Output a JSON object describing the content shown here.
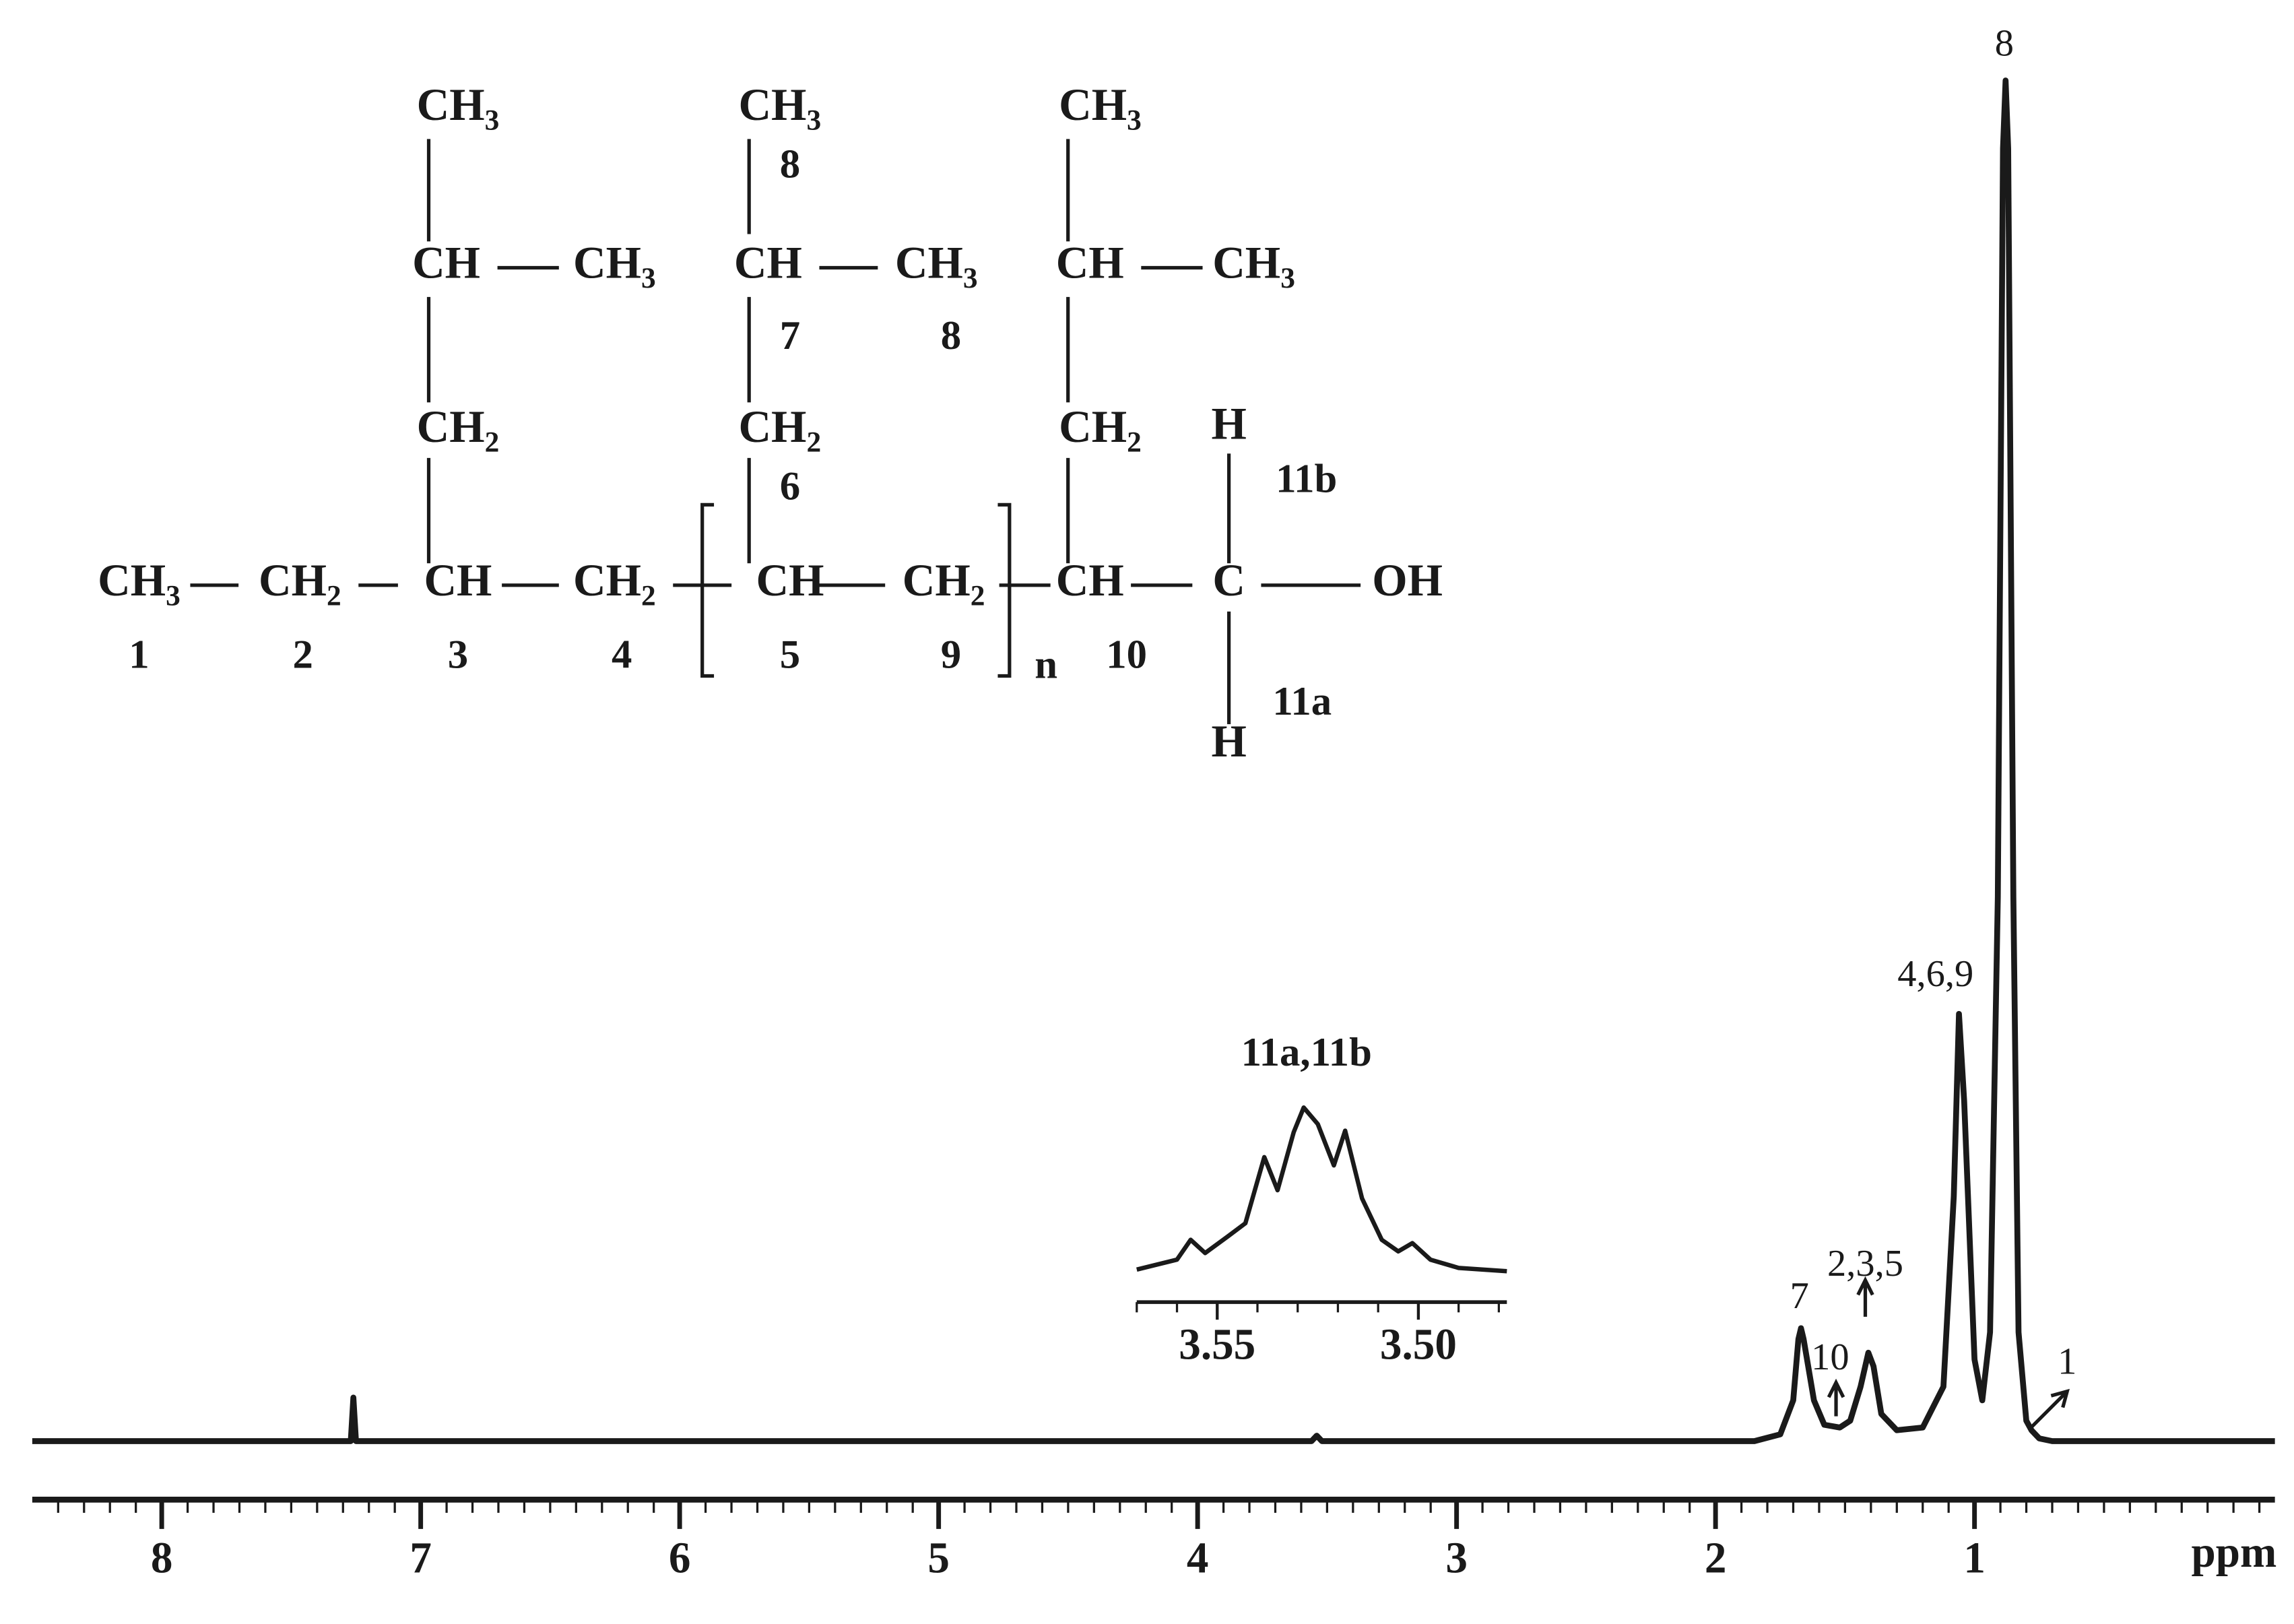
{
  "chart_data": [
    {
      "type": "line",
      "x_label": "ppm",
      "x": [
        8.5,
        7.3,
        7.27,
        7.26,
        7.25,
        3.56,
        3.54,
        3.52,
        1.85,
        1.75,
        1.7,
        1.68,
        1.67,
        1.66,
        1.62,
        1.58,
        1.52,
        1.48,
        1.44,
        1.41,
        1.39,
        1.36,
        1.3,
        1.2,
        1.12,
        1.08,
        1.06,
        1.04,
        1.0,
        0.97,
        0.94,
        0.91,
        0.89,
        0.88,
        0.87,
        0.85,
        0.83,
        0.8,
        0.78,
        0.75,
        0.7,
        -0.16
      ],
      "values": [
        0,
        0,
        0,
        3.2,
        0,
        0,
        0.4,
        0,
        0,
        0.5,
        3,
        7.5,
        8.3,
        7.5,
        3,
        1.2,
        1.0,
        1.5,
        4,
        6.5,
        5.5,
        2,
        0.8,
        1,
        4,
        18,
        31.4,
        25,
        6,
        3,
        8,
        40,
        95,
        100,
        95,
        40,
        8,
        1.5,
        0.8,
        0.2,
        0,
        0
      ],
      "color": "#1a1a1a",
      "xlim": [
        8.5,
        -0.16
      ],
      "xticks": [
        8,
        7,
        6,
        5,
        4,
        3,
        2,
        1
      ],
      "ylim": [
        0,
        100
      ],
      "annotations": [
        "8",
        "4,6,9",
        "7",
        "10",
        "2,3,5",
        "1"
      ]
    },
    {
      "type": "line",
      "title": "11a,11b",
      "x": [
        3.57,
        3.56,
        3.5566,
        3.553,
        3.5474,
        3.543,
        3.5383,
        3.535,
        3.531,
        3.5285,
        3.525,
        3.521,
        3.5182,
        3.514,
        3.5091,
        3.505,
        3.5015,
        3.497,
        3.49,
        3.478
      ],
      "values": [
        2,
        8,
        20,
        12,
        22,
        30,
        70,
        50,
        85,
        100,
        90,
        65,
        86,
        45,
        20,
        13,
        18,
        8,
        3,
        1
      ],
      "color": "#1a1a1a",
      "xlim": [
        3.57,
        3.478
      ],
      "xticks": [
        3.55,
        {
          "value": 3.5,
          "label": "3.50"
        }
      ],
      "ylim": [
        0,
        100
      ]
    }
  ],
  "structure": {
    "groups": [
      {
        "text": "CH",
        "sub": "3"
      },
      {
        "text": "CH",
        "sub": "2"
      },
      {
        "text": "CH"
      },
      {
        "text": "CH",
        "sub": "2"
      },
      {
        "text": "CH"
      },
      {
        "text": "CH",
        "sub": "2"
      },
      {
        "text": "CH"
      },
      {
        "text": "C"
      },
      {
        "text": "OH"
      },
      {
        "text": "CH",
        "sub": "2"
      },
      {
        "text": "CH"
      },
      {
        "text": "CH",
        "sub": "3"
      },
      {
        "text": "CH",
        "sub": "3"
      },
      {
        "text": "CH",
        "sub": "2"
      },
      {
        "text": "CH"
      },
      {
        "text": "CH",
        "sub": "3"
      },
      {
        "text": "CH",
        "sub": "3"
      },
      {
        "text": "CH",
        "sub": "2"
      },
      {
        "text": "CH"
      },
      {
        "text": "CH",
        "sub": "3"
      },
      {
        "text": "CH",
        "sub": "3"
      },
      {
        "text": "H"
      },
      {
        "text": "H"
      }
    ],
    "labels": [
      "1",
      "2",
      "3",
      "4",
      "5",
      "9",
      "n",
      "10",
      "6",
      "7",
      "8",
      "8",
      "11b",
      "11a"
    ]
  }
}
